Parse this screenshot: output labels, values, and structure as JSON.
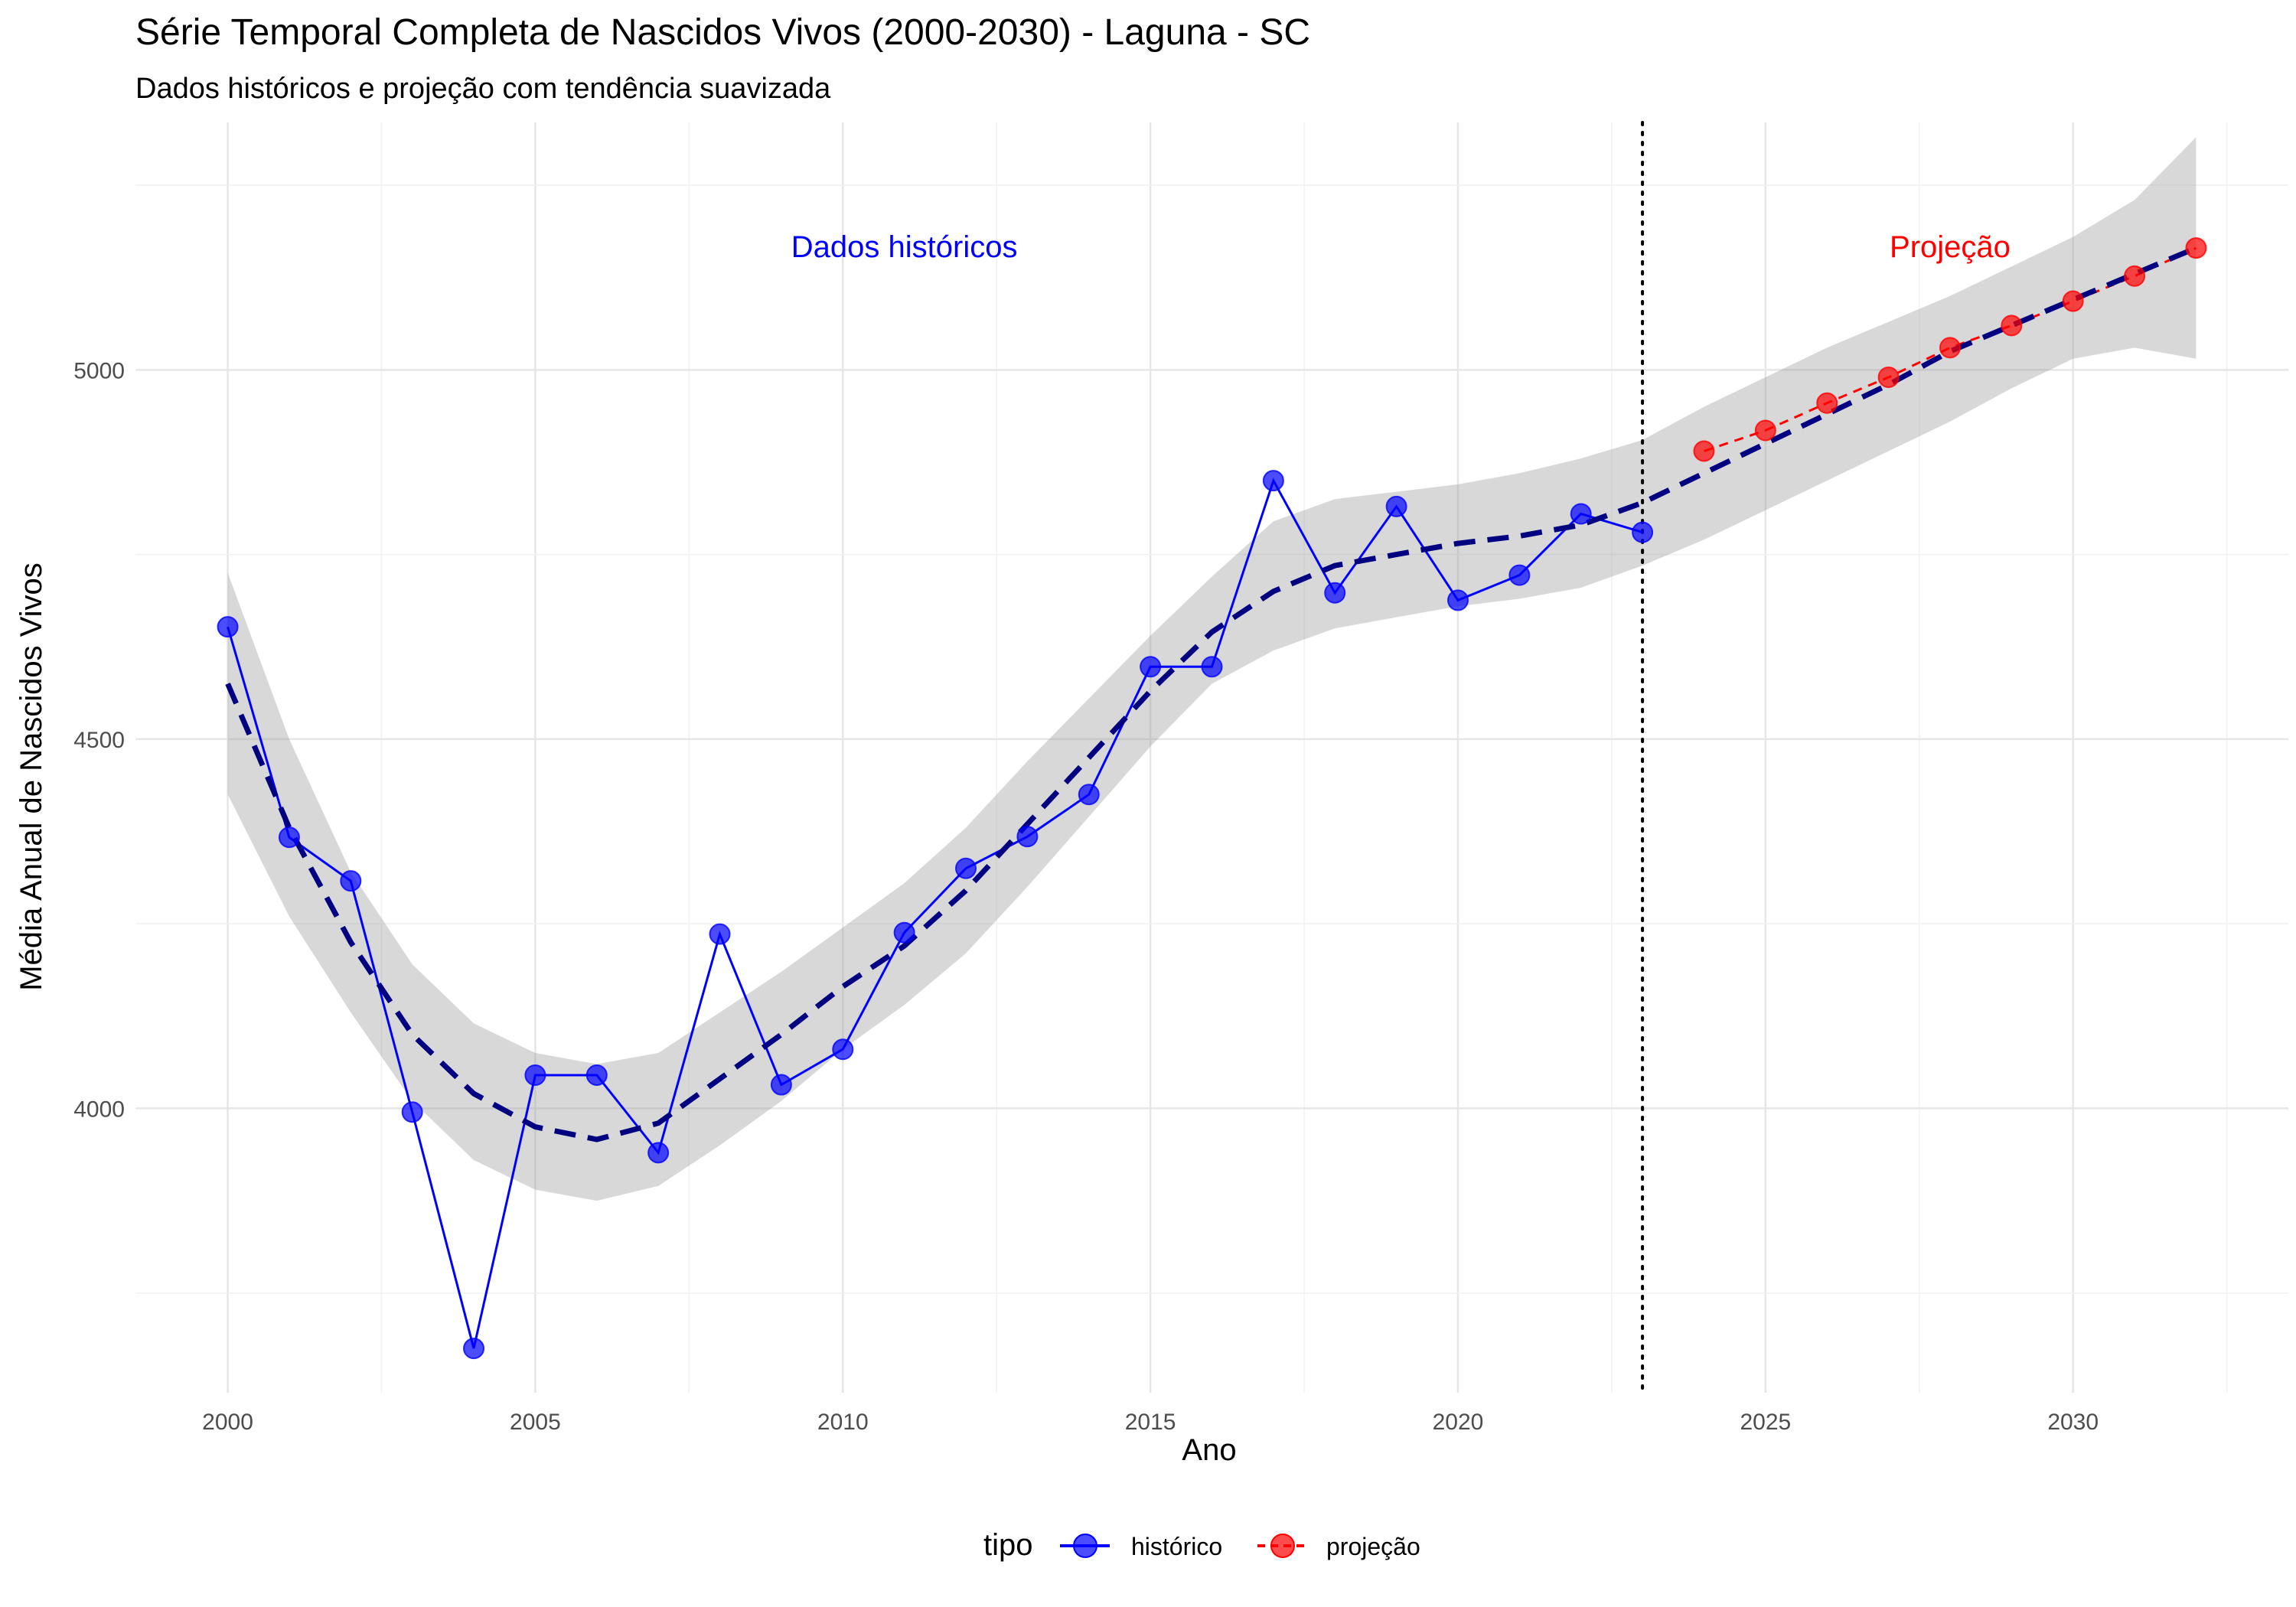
{
  "chart_data": {
    "type": "line",
    "title": "Série Temporal Completa de Nascidos Vivos (2000-2030) -  Laguna - SC",
    "subtitle": "Dados históricos e projeção com tendência suavizada",
    "xlabel": "Ano",
    "ylabel": "Média Anual de Nascidos Vivos",
    "xlim": [
      1998.5,
      2033.5
    ],
    "ylim": [
      3615,
      5335
    ],
    "x_ticks": [
      2000,
      2005,
      2010,
      2015,
      2020,
      2025,
      2030
    ],
    "y_ticks": [
      4000,
      4500,
      5000
    ],
    "grid": true,
    "legend": {
      "position": "bottom",
      "title": "tipo",
      "entries": [
        {
          "label": "histórico",
          "color": "#0000ff"
        },
        {
          "label": "projeção",
          "color": "#ff0000"
        }
      ]
    },
    "annotations": [
      {
        "text": "Dados históricos",
        "x": 2011,
        "y": 5167,
        "color": "#0000ff"
      },
      {
        "text": "Projeção",
        "x": 2028,
        "y": 5167,
        "color": "#ff0000"
      }
    ],
    "vline": {
      "x": 2023,
      "style": "dotted"
    },
    "series": [
      {
        "name": "histórico",
        "color": "#0000ff",
        "x": [
          2000,
          2001,
          2002,
          2003,
          2004,
          2005,
          2006,
          2007,
          2008,
          2009,
          2010,
          2011,
          2012,
          2013,
          2014,
          2015,
          2016,
          2017,
          2018,
          2019,
          2020,
          2021,
          2022,
          2023
        ],
        "y": [
          4652,
          4367,
          4308,
          3995,
          3675,
          4045,
          4045,
          3940,
          4236,
          4032,
          4080,
          4238,
          4325,
          4368,
          4425,
          4598,
          4598,
          4850,
          4698,
          4815,
          4688,
          4722,
          4805,
          4780
        ]
      },
      {
        "name": "projeção",
        "color": "#ff0000",
        "x": [
          2024,
          2025,
          2026,
          2027,
          2028,
          2029,
          2030,
          2031,
          2032
        ],
        "y": [
          4890,
          4918,
          4955,
          4990,
          5030,
          5060,
          5093,
          5127,
          5165
        ]
      }
    ],
    "trend": {
      "x": [
        2000,
        2001,
        2002,
        2003,
        2004,
        2005,
        2006,
        2007,
        2008,
        2009,
        2010,
        2011,
        2012,
        2013,
        2014,
        2015,
        2016,
        2017,
        2018,
        2019,
        2020,
        2021,
        2022,
        2023,
        2024,
        2025,
        2026,
        2027,
        2028,
        2029,
        2030,
        2031,
        2032
      ],
      "y": [
        4575,
        4380,
        4225,
        4100,
        4020,
        3975,
        3958,
        3980,
        4040,
        4100,
        4165,
        4220,
        4295,
        4385,
        4475,
        4565,
        4645,
        4700,
        4735,
        4750,
        4765,
        4775,
        4790,
        4820,
        4860,
        4900,
        4940,
        4980,
        5025,
        5060,
        5095,
        5130,
        5165
      ],
      "upper": [
        4725,
        4500,
        4320,
        4195,
        4115,
        4075,
        4060,
        4075,
        4130,
        4185,
        4245,
        4305,
        4380,
        4470,
        4555,
        4640,
        4720,
        4795,
        4825,
        4835,
        4845,
        4860,
        4880,
        4905,
        4950,
        4990,
        5030,
        5065,
        5100,
        5140,
        5180,
        5230,
        5315
      ],
      "lower": [
        4425,
        4260,
        4130,
        4010,
        3930,
        3890,
        3875,
        3895,
        3950,
        4010,
        4080,
        4140,
        4210,
        4300,
        4395,
        4490,
        4575,
        4620,
        4650,
        4665,
        4680,
        4690,
        4705,
        4735,
        4770,
        4810,
        4850,
        4890,
        4930,
        4975,
        5015,
        5030,
        5015
      ]
    }
  }
}
